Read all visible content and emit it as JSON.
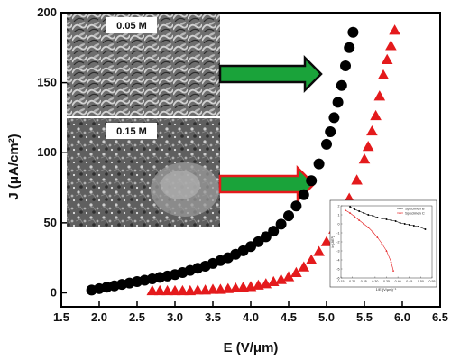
{
  "chart_data": [
    {
      "type": "scatter",
      "title": "",
      "xlabel": "E (V/μm)",
      "ylabel": "J (μA/cm²)",
      "xlim": [
        1.5,
        6.5
      ],
      "ylim": [
        -10,
        200
      ],
      "xticks": [
        "1.5",
        "2.0",
        "2.5",
        "3.0",
        "3.5",
        "4.0",
        "4.5",
        "5.0",
        "5.5",
        "6.0",
        "6.5"
      ],
      "yticks": [
        "0",
        "50",
        "100",
        "150",
        "200"
      ],
      "grid": false,
      "series": [
        {
          "color": "#000000",
          "marker": "circle",
          "points": [
            [
              1.9,
              2
            ],
            [
              2.0,
              3
            ],
            [
              2.1,
              4
            ],
            [
              2.2,
              5
            ],
            [
              2.3,
              6
            ],
            [
              2.4,
              7
            ],
            [
              2.5,
              8
            ],
            [
              2.6,
              9
            ],
            [
              2.7,
              10
            ],
            [
              2.8,
              11
            ],
            [
              2.9,
              12
            ],
            [
              3.0,
              13
            ],
            [
              3.1,
              14.5
            ],
            [
              3.2,
              16
            ],
            [
              3.3,
              17.5
            ],
            [
              3.4,
              19
            ],
            [
              3.5,
              21
            ],
            [
              3.6,
              23
            ],
            [
              3.7,
              25
            ],
            [
              3.8,
              27.5
            ],
            [
              3.9,
              30
            ],
            [
              4.0,
              33
            ],
            [
              4.1,
              36.5
            ],
            [
              4.2,
              40
            ],
            [
              4.3,
              44
            ],
            [
              4.4,
              49
            ],
            [
              4.5,
              55
            ],
            [
              4.6,
              62
            ],
            [
              4.7,
              70
            ],
            [
              4.8,
              80
            ],
            [
              4.9,
              92
            ],
            [
              5.0,
              106
            ],
            [
              5.05,
              115
            ],
            [
              5.1,
              125
            ],
            [
              5.15,
              136
            ],
            [
              5.2,
              148
            ],
            [
              5.25,
              162
            ],
            [
              5.3,
              175
            ],
            [
              5.35,
              186
            ]
          ]
        },
        {
          "color": "#e41a1c",
          "marker": "triangle",
          "points": [
            [
              2.7,
              1
            ],
            [
              2.8,
              1
            ],
            [
              2.9,
              1
            ],
            [
              3.0,
              1
            ],
            [
              3.1,
              1
            ],
            [
              3.2,
              1
            ],
            [
              3.3,
              1.5
            ],
            [
              3.4,
              1.5
            ],
            [
              3.5,
              2
            ],
            [
              3.6,
              2
            ],
            [
              3.7,
              2.5
            ],
            [
              3.8,
              3
            ],
            [
              3.9,
              3.5
            ],
            [
              4.0,
              4
            ],
            [
              4.1,
              5
            ],
            [
              4.2,
              6
            ],
            [
              4.3,
              7.5
            ],
            [
              4.4,
              9
            ],
            [
              4.5,
              11
            ],
            [
              4.6,
              14
            ],
            [
              4.7,
              18
            ],
            [
              4.8,
              23
            ],
            [
              4.9,
              29
            ],
            [
              5.0,
              36
            ],
            [
              5.1,
              45
            ],
            [
              5.2,
              55
            ],
            [
              5.3,
              67
            ],
            [
              5.4,
              80
            ],
            [
              5.5,
              95
            ],
            [
              5.55,
              104
            ],
            [
              5.6,
              115
            ],
            [
              5.65,
              126
            ],
            [
              5.7,
              140
            ],
            [
              5.75,
              155
            ],
            [
              5.8,
              166
            ],
            [
              5.85,
              176
            ],
            [
              5.9,
              187
            ]
          ]
        }
      ]
    },
    {
      "type": "line",
      "title": "",
      "xlabel": "1/E (V/μm)⁻¹",
      "ylabel": "ln(J/E²)",
      "legend": "top-right",
      "xticks": [
        "0.15",
        "0.20",
        "0.25",
        "0.30",
        "0.35",
        "0.40",
        "0.45",
        "0.50",
        "0.55"
      ],
      "yticks": [
        "2",
        "1",
        "0",
        "-1",
        "-2",
        "-3",
        "-4",
        "-5",
        "-6"
      ],
      "series": [
        {
          "name": "Specimen B",
          "color": "#000000",
          "points": [
            [
              0.19,
              1.9
            ],
            [
              0.21,
              1.6
            ],
            [
              0.23,
              1.4
            ],
            [
              0.25,
              1.2
            ],
            [
              0.27,
              1.0
            ],
            [
              0.29,
              0.9
            ],
            [
              0.31,
              0.7
            ],
            [
              0.33,
              0.6
            ],
            [
              0.35,
              0.5
            ],
            [
              0.37,
              0.4
            ],
            [
              0.39,
              0.3
            ],
            [
              0.41,
              0.1
            ],
            [
              0.43,
              0.0
            ],
            [
              0.45,
              -0.1
            ],
            [
              0.47,
              -0.2
            ],
            [
              0.49,
              -0.3
            ],
            [
              0.52,
              -0.6
            ]
          ]
        },
        {
          "name": "Specimen C",
          "color": "#e41a1c",
          "points": [
            [
              0.17,
              1.5
            ],
            [
              0.19,
              1.2
            ],
            [
              0.21,
              0.8
            ],
            [
              0.23,
              0.4
            ],
            [
              0.25,
              0.0
            ],
            [
              0.27,
              -0.4
            ],
            [
              0.29,
              -0.9
            ],
            [
              0.31,
              -1.5
            ],
            [
              0.33,
              -2.2
            ],
            [
              0.35,
              -3.0
            ],
            [
              0.37,
              -4.2
            ],
            [
              0.38,
              -5.2
            ]
          ]
        }
      ]
    }
  ],
  "sem_images": [
    {
      "label": "0.05 M",
      "arrow_color": "#1aa33a"
    },
    {
      "label": "0.15 M",
      "arrow_color": "#1aa33a",
      "arrow_outline": "#e41a1c"
    }
  ]
}
